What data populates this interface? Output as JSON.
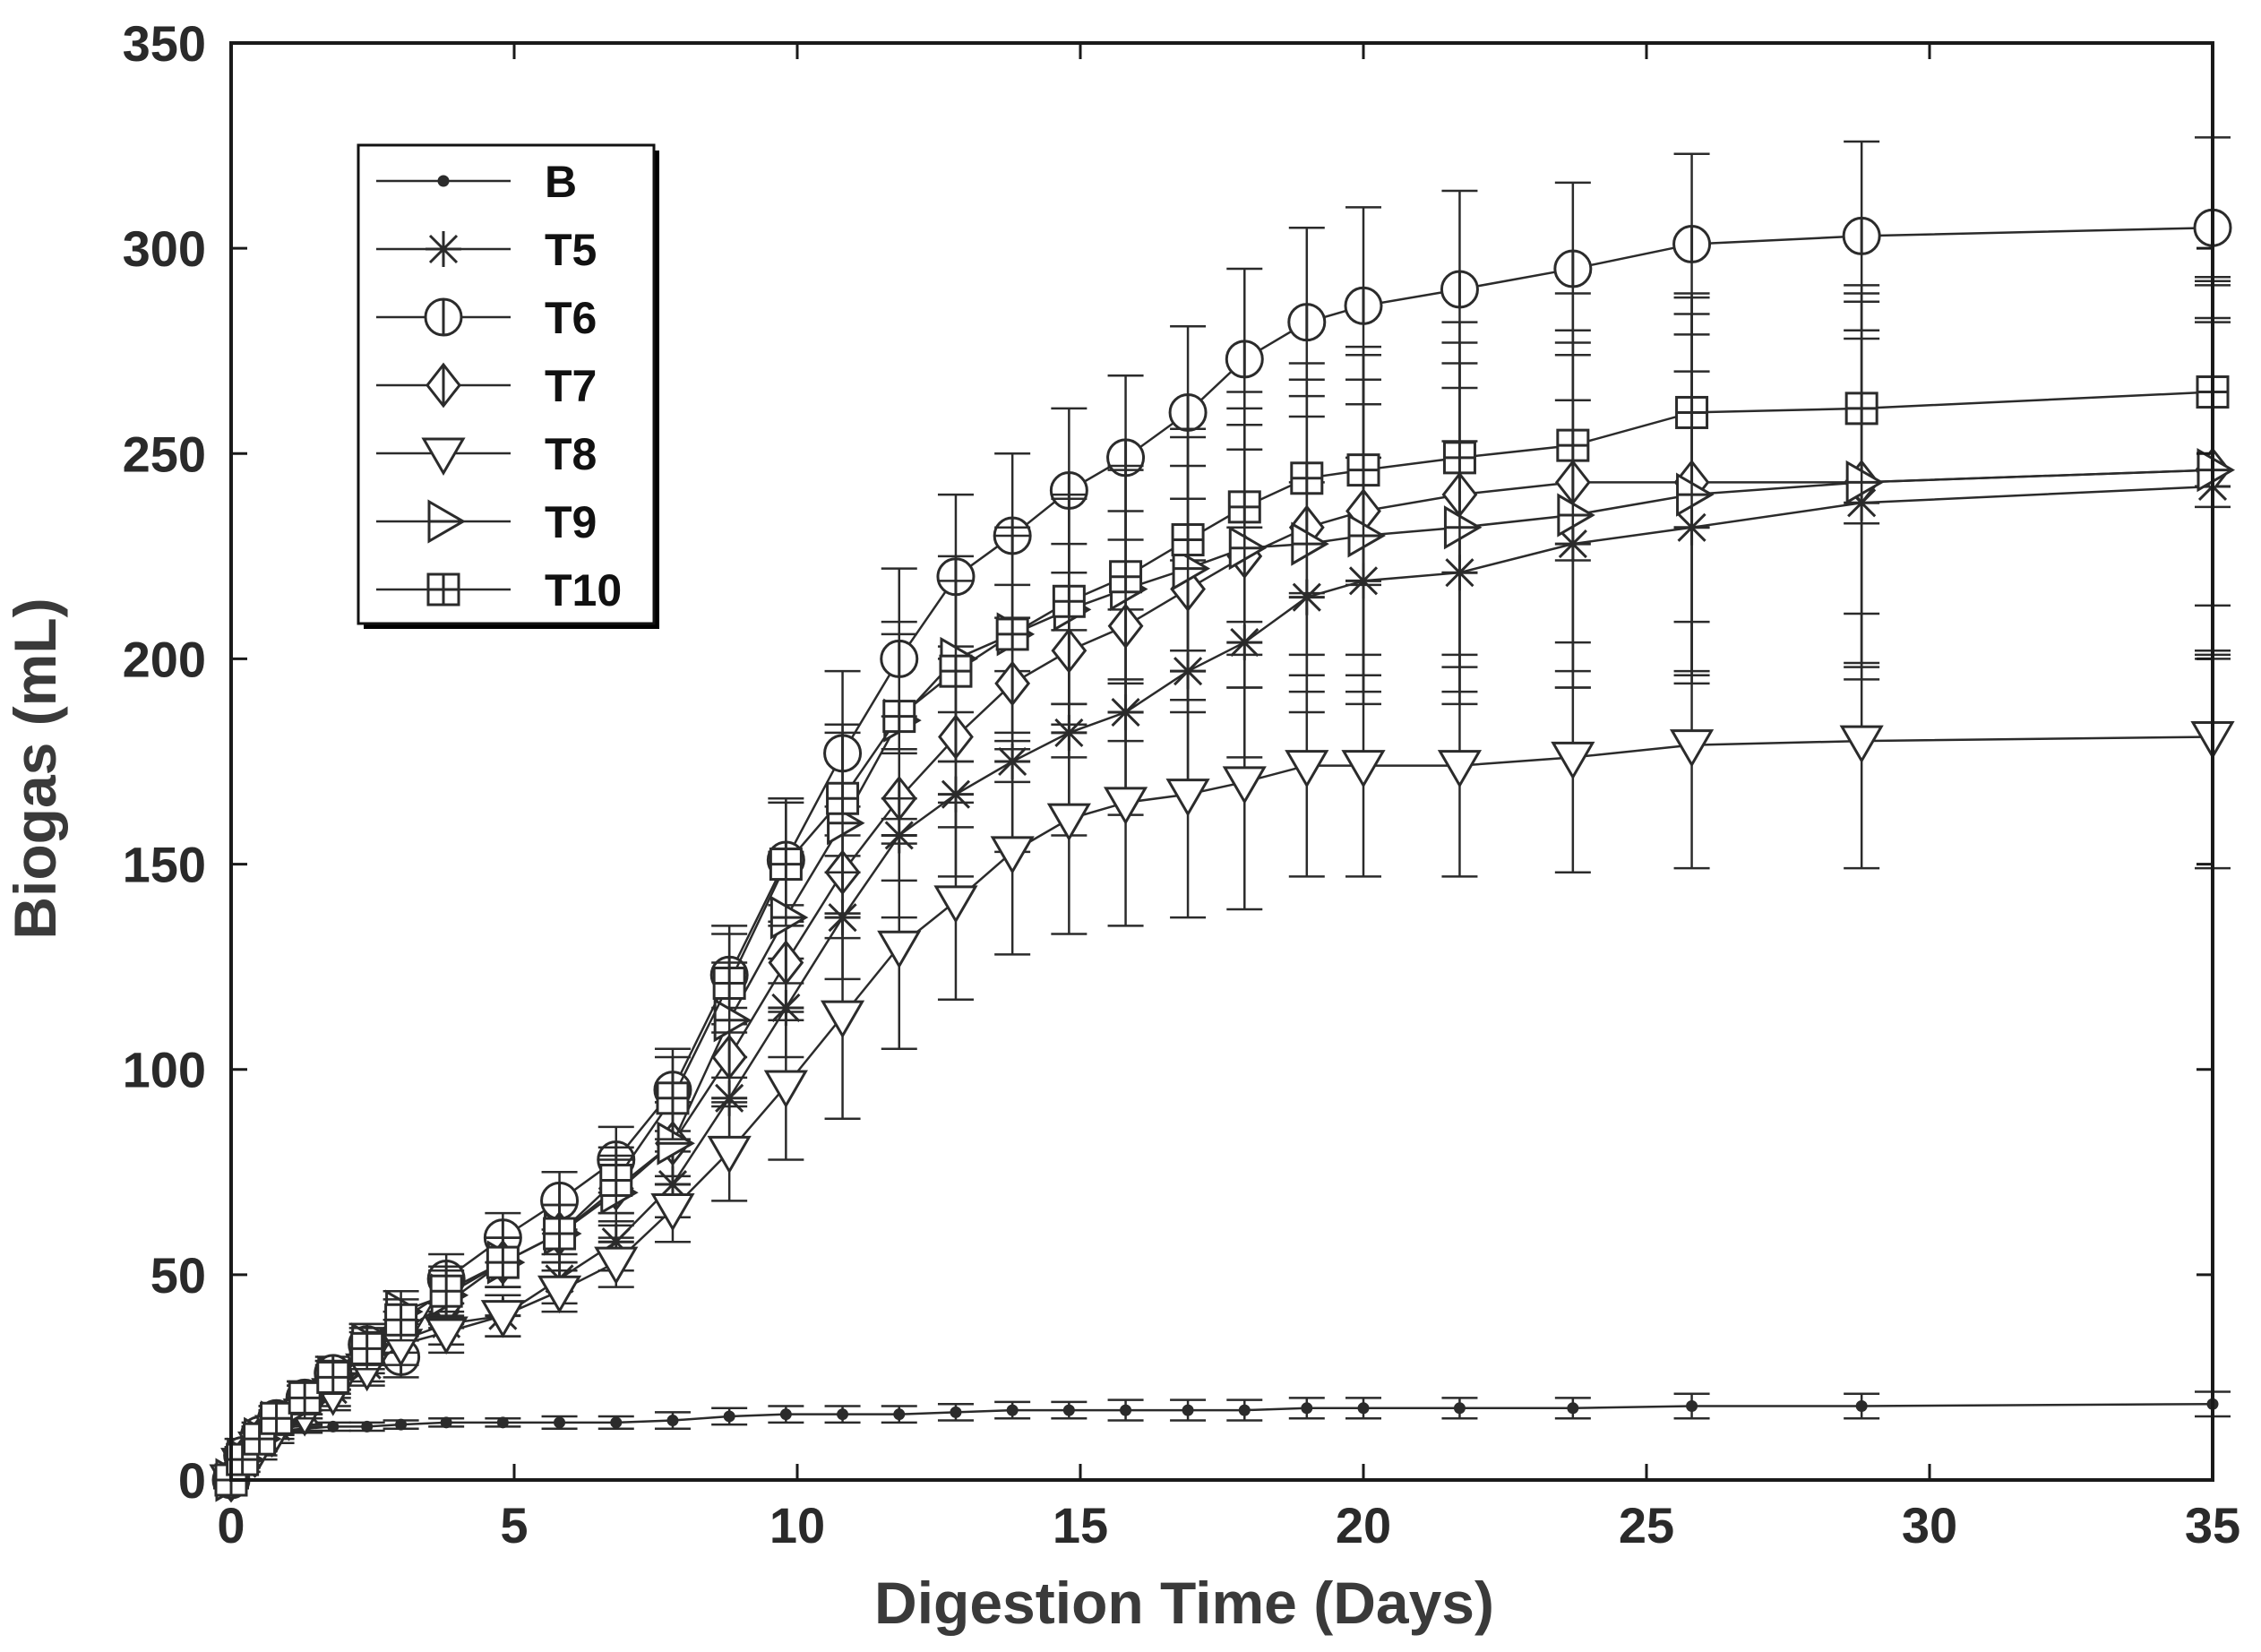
{
  "chart_data": {
    "type": "line",
    "title": "",
    "xlabel": "Digestion Time (Days)",
    "ylabel": "Biogas (mL)",
    "xlim": [
      0,
      35
    ],
    "ylim": [
      0,
      350
    ],
    "xticks": [
      0,
      5,
      10,
      15,
      20,
      25,
      30,
      35
    ],
    "yticks": [
      0,
      50,
      100,
      150,
      200,
      250,
      300,
      350
    ],
    "grid": false,
    "legend_position": "top-left",
    "colors": {
      "line": "#2b2b2b",
      "axis": "#1a1a1a",
      "background": "#ffffff"
    },
    "x": [
      0,
      0.2,
      0.5,
      0.8,
      1.3,
      1.8,
      2.4,
      3.0,
      3.8,
      4.8,
      5.8,
      6.8,
      7.8,
      8.8,
      9.8,
      10.8,
      11.8,
      12.8,
      13.8,
      14.8,
      15.8,
      16.9,
      17.9,
      19.0,
      20.0,
      21.7,
      23.7,
      25.8,
      28.8,
      35.0
    ],
    "series": [
      {
        "name": "B",
        "marker": "dot",
        "values": [
          0,
          9,
          11,
          12,
          12.5,
          13,
          13,
          13.5,
          14,
          14,
          14,
          14,
          14.5,
          15.5,
          16,
          16,
          16,
          16.5,
          17,
          17,
          17,
          17,
          17,
          17.5,
          17.5,
          17.5,
          17.5,
          18,
          18,
          18.5
        ],
        "errors": [
          1,
          1,
          1,
          1,
          1,
          1,
          1,
          1,
          1,
          1,
          1.5,
          1.5,
          2,
          2,
          2,
          2,
          2,
          2,
          2,
          2,
          2.5,
          2.5,
          2.5,
          2.5,
          2.5,
          2.5,
          2.5,
          3,
          3,
          3
        ]
      },
      {
        "name": "T5",
        "marker": "star",
        "values": [
          0,
          4,
          9,
          13,
          17,
          22,
          28,
          34,
          38,
          40,
          49,
          58,
          72,
          93,
          115,
          137,
          157,
          167,
          175,
          182,
          187,
          197,
          204,
          215,
          219,
          221,
          228,
          232,
          238,
          242
        ],
        "errors": [
          2,
          2,
          3,
          3,
          4,
          4,
          4,
          5,
          5,
          5,
          6,
          7,
          8,
          10,
          12,
          15,
          20,
          20,
          22,
          25,
          25,
          27,
          28,
          28,
          30,
          32,
          35,
          38,
          40,
          40
        ]
      },
      {
        "name": "T6",
        "marker": "circle-cross",
        "values": [
          0,
          6,
          11,
          15,
          20,
          26,
          33,
          30,
          49,
          59,
          68,
          78,
          95,
          123,
          151,
          177,
          200,
          220,
          230,
          241,
          249,
          260,
          273,
          282,
          286,
          290,
          295,
          301,
          303,
          305
        ],
        "errors": [
          2,
          2,
          3,
          3,
          4,
          4,
          5,
          5,
          6,
          6,
          7,
          8,
          10,
          12,
          15,
          20,
          22,
          20,
          20,
          20,
          20,
          21,
          22,
          23,
          24,
          24,
          21,
          22,
          23,
          22
        ]
      },
      {
        "name": "T7",
        "marker": "diamond",
        "values": [
          0,
          5,
          10,
          14,
          19,
          24,
          31,
          36,
          43,
          53,
          60,
          71,
          82,
          103,
          126,
          148,
          166,
          181,
          194,
          202,
          208,
          217,
          225,
          232,
          236,
          240,
          243,
          243,
          243,
          246
        ],
        "errors": [
          2,
          2,
          3,
          3,
          4,
          4,
          5,
          5,
          6,
          6,
          7,
          8,
          10,
          12,
          14,
          16,
          20,
          22,
          24,
          26,
          28,
          30,
          32,
          36,
          40,
          42,
          46,
          46,
          48,
          46
        ]
      },
      {
        "name": "T8",
        "marker": "triangle-down",
        "values": [
          0,
          4,
          8,
          12,
          16,
          21,
          27,
          33,
          36,
          40,
          46,
          53,
          66,
          80,
          96,
          113,
          130,
          141,
          153,
          161,
          165,
          167,
          170,
          174,
          174,
          174,
          176,
          179,
          180,
          181
        ],
        "errors": [
          2,
          2,
          3,
          3,
          4,
          4,
          4,
          5,
          5,
          5,
          5,
          6,
          8,
          12,
          18,
          25,
          25,
          24,
          25,
          28,
          30,
          30,
          31,
          27,
          27,
          27,
          28,
          30,
          31,
          32
        ]
      },
      {
        "name": "T9",
        "marker": "triangle-right",
        "values": [
          0,
          5,
          10,
          14,
          19,
          25,
          33,
          41,
          45,
          53,
          60,
          70,
          82,
          112,
          137,
          160,
          185,
          200,
          206,
          212,
          217,
          222,
          227,
          228,
          230,
          232,
          235,
          240,
          243,
          246
        ],
        "errors": [
          2,
          2,
          3,
          3,
          4,
          4,
          5,
          5,
          6,
          6,
          7,
          8,
          10,
          14,
          16,
          22,
          24,
          25,
          26,
          28,
          30,
          32,
          34,
          36,
          38,
          40,
          42,
          44,
          44,
          45
        ]
      },
      {
        "name": "T10",
        "marker": "square-cross",
        "values": [
          0,
          5,
          10,
          15,
          20,
          25,
          32,
          39,
          46,
          53,
          60,
          73,
          93,
          121,
          150,
          166,
          186,
          197,
          206,
          214,
          220,
          229,
          237,
          244,
          246,
          249,
          252,
          260,
          261,
          265
        ],
        "errors": [
          2,
          2,
          3,
          3,
          4,
          4,
          5,
          5,
          6,
          6,
          7,
          8,
          10,
          12,
          15,
          18,
          20,
          22,
          24,
          25,
          26,
          27,
          28,
          28,
          28,
          28,
          28,
          28,
          28,
          28
        ]
      }
    ]
  }
}
